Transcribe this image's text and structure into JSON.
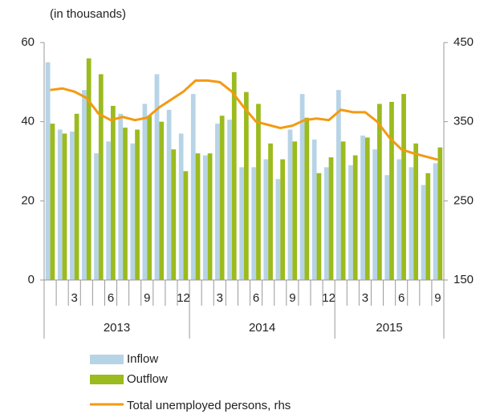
{
  "chart_data": {
    "type": "bar-line",
    "unit_note": "(in thousands)",
    "categories": [
      null,
      null,
      "3",
      null,
      null,
      "6",
      null,
      null,
      "9",
      null,
      null,
      "12",
      null,
      null,
      "3",
      null,
      null,
      "6",
      null,
      null,
      "9",
      null,
      null,
      "12",
      null,
      null,
      "3",
      null,
      null,
      "6",
      null,
      null,
      "9"
    ],
    "years": [
      {
        "label": "2013",
        "months": 12
      },
      {
        "label": "2014",
        "months": 12
      },
      {
        "label": "2015",
        "months": 9
      }
    ],
    "series": [
      {
        "name": "Inflow",
        "color": "#b7d4e6",
        "kind": "bar",
        "values": [
          55,
          38,
          37.5,
          48,
          32,
          35,
          42,
          34.5,
          44.5,
          52,
          43,
          37,
          47,
          31.5,
          39.5,
          40.5,
          28.5,
          28.5,
          30.5,
          25.5,
          38,
          47,
          35.5,
          28.5,
          48,
          29,
          36.5,
          33,
          26.5,
          30.5,
          28.5,
          24,
          29.5
        ]
      },
      {
        "name": "Outflow",
        "color": "#9bbb1e",
        "kind": "bar",
        "values": [
          39.5,
          37,
          42,
          56,
          52,
          44,
          38.5,
          38,
          41.5,
          40,
          33,
          27.5,
          32,
          32,
          41.5,
          52.5,
          47.5,
          44.5,
          34.5,
          30.5,
          35,
          41,
          27,
          31,
          35,
          31.5,
          36,
          44.5,
          45,
          47,
          34.5,
          27,
          33.5
        ]
      },
      {
        "name": "Total unemployed persons, rhs",
        "color": "#f39a12",
        "kind": "line",
        "axis": "y2",
        "values": [
          390,
          392,
          388,
          380,
          360,
          352,
          356,
          352,
          355,
          368,
          378,
          388,
          402,
          402,
          400,
          388,
          368,
          350,
          346,
          342,
          345,
          352,
          354,
          352,
          365,
          362,
          362,
          350,
          330,
          315,
          310,
          306,
          302
        ]
      }
    ],
    "ylim": [
      0,
      60
    ],
    "yticks": [
      0,
      20,
      40,
      60
    ],
    "y2lim": [
      150,
      450
    ],
    "y2ticks": [
      150,
      250,
      350,
      450
    ],
    "grid": false
  }
}
